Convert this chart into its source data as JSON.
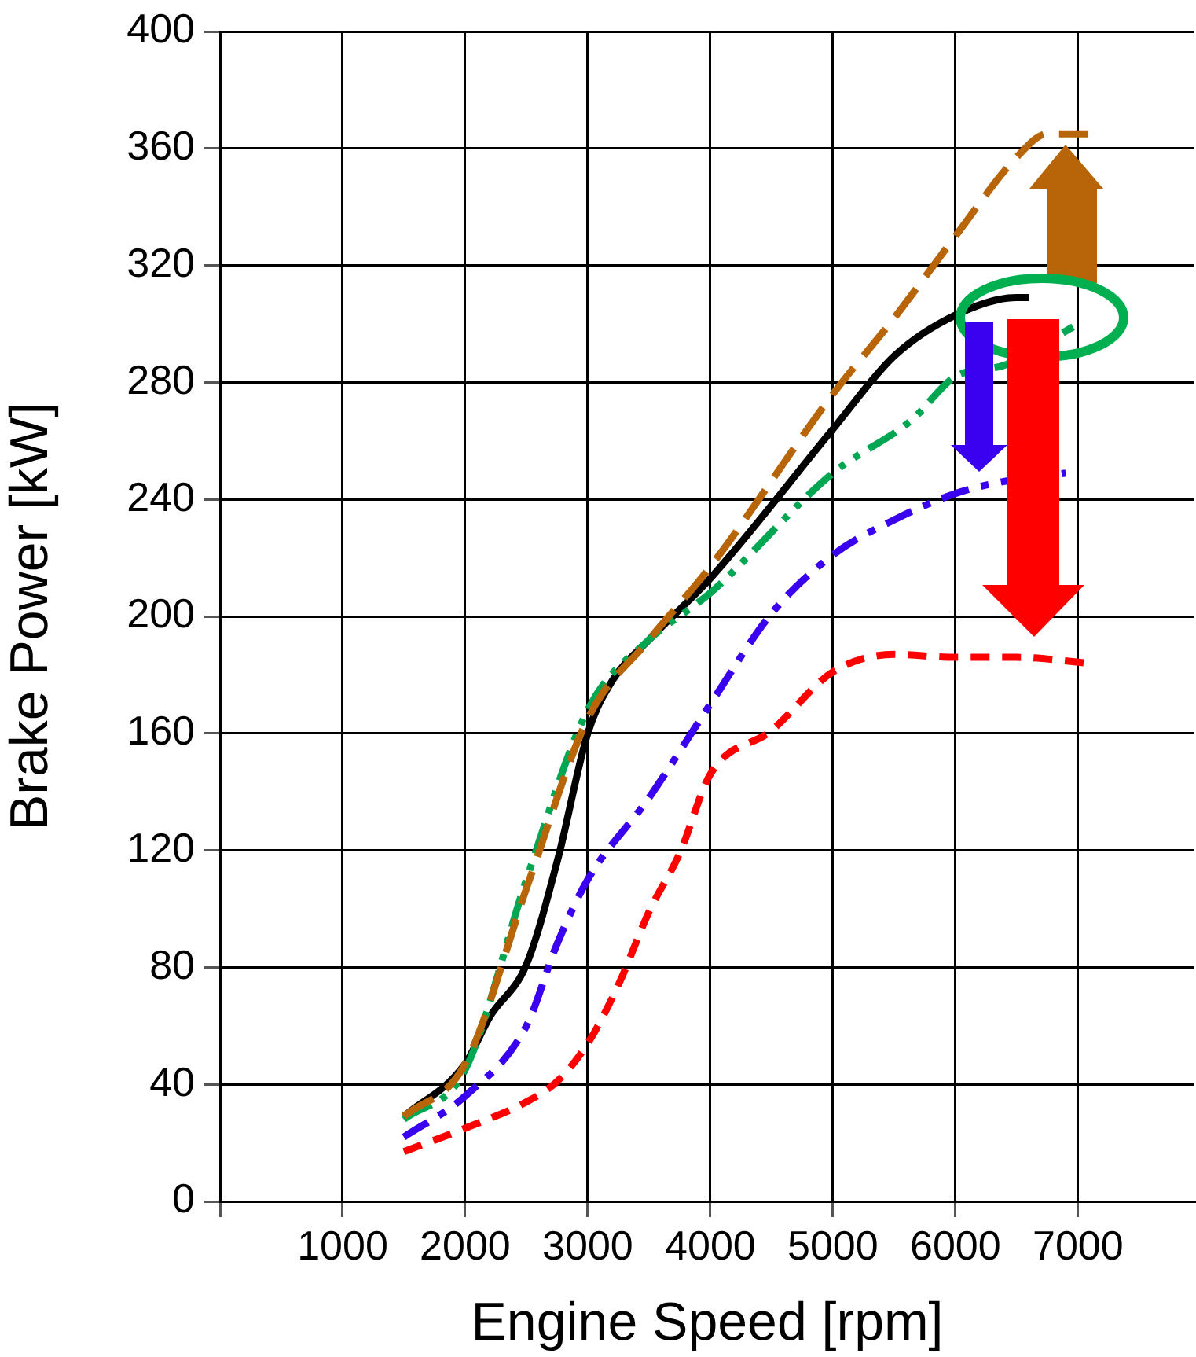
{
  "chart_data": {
    "type": "line",
    "xlabel": "Engine Speed [rpm]",
    "ylabel": "Brake Power [kW]",
    "xlim": [
      0,
      7950
    ],
    "xticks": [
      {
        "value": 0,
        "label": null
      },
      1000,
      2000,
      3000,
      4000,
      5000,
      6000,
      7000
    ],
    "ylim": [
      0,
      400
    ],
    "yticks": [
      0,
      40,
      80,
      120,
      160,
      200,
      240,
      280,
      320,
      360,
      400
    ],
    "grid": true,
    "legend": false,
    "marker": "none",
    "series": [
      {
        "color": "#b8650a",
        "line_style": "dashed",
        "x": [
          1500,
          2000,
          2525,
          3000,
          3500,
          4000,
          5000,
          5500,
          6000,
          6500,
          6750,
          7080
        ],
        "values": [
          29,
          47,
          110,
          165,
          192,
          217,
          276,
          302,
          330,
          357,
          365,
          365
        ]
      },
      {
        "color": "#00a651",
        "line_style": "dashdotdot",
        "x": [
          1500,
          2000,
          2500,
          3000,
          3500,
          3846,
          4000,
          5000,
          5640,
          6000,
          6410,
          6960
        ],
        "values": [
          28,
          45,
          110,
          168,
          192,
          203,
          208,
          249,
          267,
          282,
          286,
          299
        ]
      },
      {
        "color": "#000000",
        "line_style": "solid",
        "x": [
          1500,
          2000,
          2200,
          2500,
          2756,
          3000,
          3200,
          3500,
          4000,
          5000,
          5500,
          6000,
          6500,
          6600
        ],
        "values": [
          29,
          47,
          63,
          81,
          117,
          160,
          178,
          192,
          213,
          264,
          289,
          303,
          309,
          309
        ]
      },
      {
        "color": "#3a00f0",
        "line_style": "dashdot",
        "x": [
          1500,
          2000,
          2500,
          2750,
          3000,
          3500,
          4000,
          4500,
          5000,
          5500,
          6000,
          6380,
          6900
        ],
        "values": [
          22,
          36,
          60,
          88,
          110,
          138,
          170,
          201,
          221,
          233,
          242,
          246,
          249
        ]
      },
      {
        "color": "#ff0000",
        "line_style": "dashed_short",
        "x": [
          1500,
          2000,
          2500,
          2750,
          3000,
          3250,
          3500,
          3750,
          4000,
          4500,
          5000,
          5500,
          6000,
          6500,
          7090
        ],
        "values": [
          17,
          25,
          34,
          41,
          54,
          74,
          99,
          119,
          146,
          161,
          181,
          187,
          186,
          186,
          184
        ]
      }
    ]
  }
}
